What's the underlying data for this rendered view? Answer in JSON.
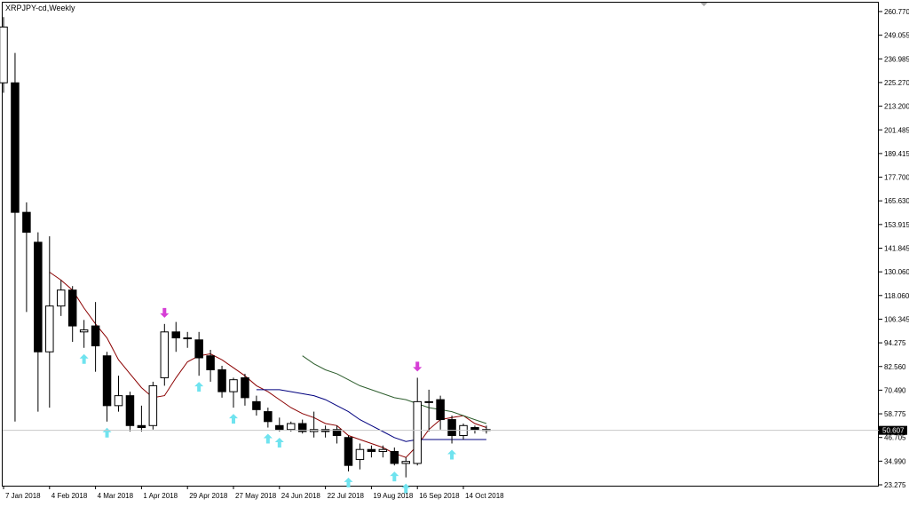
{
  "window": {
    "title": "XRPJPY-cd,Weekly"
  },
  "colors": {
    "background": "#ffffff",
    "frame": "#000000",
    "candle_up_fill": "#ffffff",
    "candle_down_fill": "#000000",
    "ma_fast": "#8b0000",
    "ma_mid": "#00007f",
    "ma_slow": "#2e5e2e",
    "arrow_up": "#6fe3ef",
    "arrow_down": "#d63fd6",
    "price_line": "#c8c8c8",
    "price_label_bg": "#000000",
    "price_label_text": "#ffffff"
  },
  "chart_data": {
    "type": "candlestick",
    "title": "XRPJPY-cd,Weekly",
    "yaxis": {
      "ticks": [
        "260.770",
        "249.055",
        "236.985",
        "225.270",
        "213.200",
        "201.485",
        "189.415",
        "177.700",
        "165.630",
        "153.915",
        "141.845",
        "130.060",
        "118.060",
        "106.345",
        "94.275",
        "82.560",
        "70.490",
        "58.775",
        "46.705",
        "34.990",
        "23.275"
      ],
      "min": 23.275,
      "max": 260.77
    },
    "xaxis": {
      "ticks": [
        {
          "label": "7 Jan 2018",
          "bar": 0
        },
        {
          "label": "4 Feb 2018",
          "bar": 4
        },
        {
          "label": "4 Mar 2018",
          "bar": 8
        },
        {
          "label": "1 Apr 2018",
          "bar": 12
        },
        {
          "label": "29 Apr 2018",
          "bar": 16
        },
        {
          "label": "27 May 2018",
          "bar": 20
        },
        {
          "label": "24 Jun 2018",
          "bar": 24
        },
        {
          "label": "22 Jul 2018",
          "bar": 28
        },
        {
          "label": "19 Aug 2018",
          "bar": 32
        },
        {
          "label": "16 Sep 2018",
          "bar": 36
        },
        {
          "label": "14 Oct 2018",
          "bar": 40
        }
      ]
    },
    "current_price": "50.607",
    "current_value": 50.607,
    "candles": [
      {
        "o": 225,
        "h": 258,
        "l": 220,
        "c": 253
      },
      {
        "o": 225,
        "h": 240,
        "l": 55,
        "c": 160
      },
      {
        "o": 160,
        "h": 165,
        "l": 110,
        "c": 150
      },
      {
        "o": 145,
        "h": 150,
        "l": 60,
        "c": 90
      },
      {
        "o": 90,
        "h": 148,
        "l": 62,
        "c": 113
      },
      {
        "o": 113,
        "h": 126,
        "l": 108,
        "c": 121
      },
      {
        "o": 121,
        "h": 123,
        "l": 95,
        "c": 103
      },
      {
        "o": 100,
        "h": 106,
        "l": 92,
        "c": 101
      },
      {
        "o": 103,
        "h": 115,
        "l": 80,
        "c": 93
      },
      {
        "o": 88,
        "h": 90,
        "l": 55,
        "c": 63
      },
      {
        "o": 63,
        "h": 78,
        "l": 60,
        "c": 68
      },
      {
        "o": 68,
        "h": 70,
        "l": 50,
        "c": 53
      },
      {
        "o": 53,
        "h": 63,
        "l": 50,
        "c": 52
      },
      {
        "o": 53,
        "h": 75,
        "l": 51,
        "c": 73
      },
      {
        "o": 77,
        "h": 104,
        "l": 73,
        "c": 100
      },
      {
        "o": 100,
        "h": 105,
        "l": 90,
        "c": 97
      },
      {
        "o": 97,
        "h": 100,
        "l": 92,
        "c": 97
      },
      {
        "o": 96,
        "h": 100,
        "l": 78,
        "c": 87
      },
      {
        "o": 88,
        "h": 91,
        "l": 75,
        "c": 81
      },
      {
        "o": 81,
        "h": 83,
        "l": 67,
        "c": 70
      },
      {
        "o": 70,
        "h": 77,
        "l": 62,
        "c": 76
      },
      {
        "o": 77,
        "h": 79,
        "l": 63,
        "c": 67
      },
      {
        "o": 65,
        "h": 68,
        "l": 58,
        "c": 61
      },
      {
        "o": 60,
        "h": 62,
        "l": 52,
        "c": 55
      },
      {
        "o": 53,
        "h": 57,
        "l": 50,
        "c": 51
      },
      {
        "o": 51,
        "h": 55,
        "l": 50,
        "c": 54
      },
      {
        "o": 54,
        "h": 56,
        "l": 49,
        "c": 50
      },
      {
        "o": 50,
        "h": 60,
        "l": 47,
        "c": 51
      },
      {
        "o": 51,
        "h": 53,
        "l": 47,
        "c": 50
      },
      {
        "o": 51,
        "h": 53,
        "l": 44,
        "c": 48
      },
      {
        "o": 47,
        "h": 48,
        "l": 30,
        "c": 33
      },
      {
        "o": 36,
        "h": 44,
        "l": 31,
        "c": 41
      },
      {
        "o": 41,
        "h": 43,
        "l": 37,
        "c": 40
      },
      {
        "o": 40,
        "h": 43,
        "l": 37,
        "c": 41
      },
      {
        "o": 40,
        "h": 42,
        "l": 33,
        "c": 34
      },
      {
        "o": 34,
        "h": 37,
        "l": 27,
        "c": 35
      },
      {
        "o": 34,
        "h": 77,
        "l": 33,
        "c": 65
      },
      {
        "o": 65,
        "h": 71,
        "l": 50,
        "c": 65
      },
      {
        "o": 66,
        "h": 68,
        "l": 51,
        "c": 56
      },
      {
        "o": 56,
        "h": 58,
        "l": 44,
        "c": 48
      },
      {
        "o": 48,
        "h": 54,
        "l": 46,
        "c": 53
      },
      {
        "o": 52,
        "h": 53,
        "l": 49,
        "c": 51
      },
      {
        "o": 51,
        "h": 53,
        "l": 49,
        "c": 51
      }
    ],
    "ma_fast": [
      null,
      null,
      null,
      null,
      130,
      126,
      121,
      112,
      104,
      97,
      86,
      79,
      72,
      67,
      68,
      77,
      85,
      88,
      89,
      86,
      82,
      78,
      73,
      70,
      66,
      62,
      59,
      57,
      54,
      53,
      48,
      46,
      44,
      42,
      39,
      37,
      43,
      51,
      56,
      57,
      58,
      54,
      52
    ],
    "ma_mid": [
      null,
      null,
      null,
      null,
      null,
      null,
      null,
      null,
      null,
      null,
      null,
      null,
      null,
      null,
      null,
      null,
      null,
      null,
      null,
      null,
      null,
      null,
      71,
      71,
      71,
      70,
      69,
      68,
      66,
      63,
      60,
      56,
      53,
      50,
      47,
      45,
      46,
      46,
      46,
      46,
      46,
      46,
      46
    ],
    "ma_slow": [
      null,
      null,
      null,
      null,
      null,
      null,
      null,
      null,
      null,
      null,
      null,
      null,
      null,
      null,
      null,
      null,
      null,
      null,
      null,
      null,
      null,
      null,
      null,
      null,
      null,
      null,
      88,
      84,
      81,
      79,
      76,
      73,
      71,
      69,
      67,
      66,
      64,
      62,
      61,
      60,
      58,
      56,
      54
    ],
    "signals_up": [
      7,
      9,
      17,
      20,
      23,
      24,
      30,
      34,
      35,
      39
    ],
    "signals_down": [
      14,
      36
    ]
  }
}
